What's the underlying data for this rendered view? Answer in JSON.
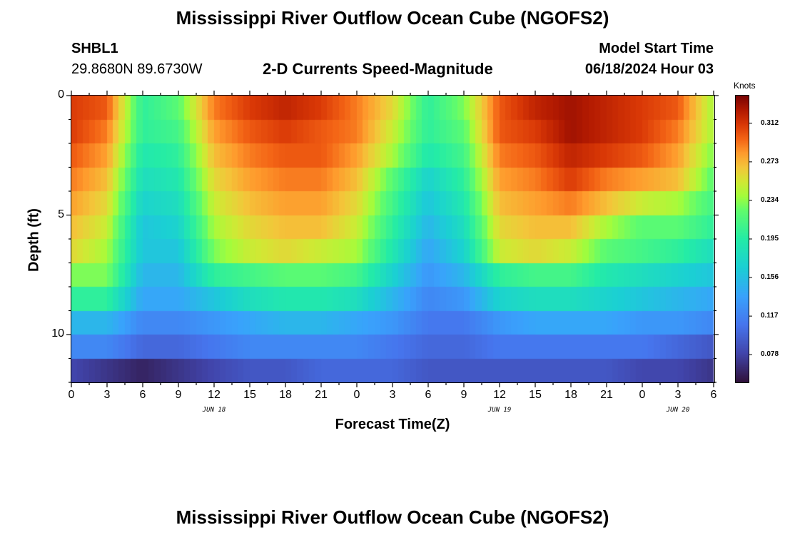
{
  "header": {
    "title": "Mississippi River Outflow Ocean Cube (NGOFS2)",
    "station": "SHBL1",
    "coords": "29.8680N  89.6730W",
    "subtitle": "2-D Currents Speed-Magnitude",
    "model_start_label": "Model Start Time",
    "model_start_value": "06/18/2024 Hour 03"
  },
  "footer": {
    "title": "Mississippi River Outflow Ocean Cube (NGOFS2)"
  },
  "chart_data": {
    "type": "heatmap",
    "xlabel": "Forecast Time(Z)",
    "ylabel": "Depth (ft)",
    "xlim": [
      0,
      54
    ],
    "ylim": [
      12,
      0
    ],
    "x_tick_labels": [
      "0",
      "3",
      "6",
      "9",
      "12",
      "15",
      "18",
      "21",
      "0",
      "3",
      "6",
      "9",
      "12",
      "15",
      "18",
      "21",
      "0",
      "3",
      "6"
    ],
    "y_tick_labels": [
      "0",
      "5",
      "10"
    ],
    "y_ticks": [
      0,
      5,
      10
    ],
    "day_labels": [
      {
        "text": "JUN 18",
        "hour": 12
      },
      {
        "text": "JUN 19",
        "hour": 36
      },
      {
        "text": "JUN 20",
        "hour": 51
      }
    ],
    "colorbar": {
      "unit": "Knots",
      "min": 0.05,
      "max": 0.34,
      "tick_labels": [
        "0.312",
        "0.273",
        "0.234",
        "0.195",
        "0.156",
        "0.117",
        "0.078"
      ]
    },
    "depths_ft": [
      0.5,
      1.5,
      2.5,
      3.5,
      4.5,
      5.5,
      6.5,
      7.5,
      8.5,
      9.5,
      10.5,
      11.5
    ],
    "hours": [
      0,
      3,
      6,
      9,
      12,
      15,
      18,
      21,
      24,
      27,
      30,
      33,
      36,
      39,
      42,
      45,
      48,
      51,
      54
    ],
    "speeds_knots": [
      [
        0.31,
        0.3,
        0.2,
        0.22,
        0.29,
        0.31,
        0.32,
        0.31,
        0.29,
        0.26,
        0.2,
        0.23,
        0.3,
        0.32,
        0.33,
        0.32,
        0.31,
        0.3,
        0.24
      ],
      [
        0.31,
        0.29,
        0.2,
        0.21,
        0.28,
        0.3,
        0.31,
        0.3,
        0.29,
        0.25,
        0.2,
        0.22,
        0.3,
        0.31,
        0.33,
        0.32,
        0.31,
        0.29,
        0.24
      ],
      [
        0.3,
        0.28,
        0.19,
        0.2,
        0.27,
        0.29,
        0.3,
        0.3,
        0.28,
        0.24,
        0.19,
        0.21,
        0.29,
        0.3,
        0.32,
        0.31,
        0.3,
        0.28,
        0.23
      ],
      [
        0.29,
        0.27,
        0.18,
        0.19,
        0.26,
        0.28,
        0.29,
        0.29,
        0.27,
        0.22,
        0.17,
        0.2,
        0.28,
        0.29,
        0.31,
        0.29,
        0.28,
        0.27,
        0.22
      ],
      [
        0.28,
        0.26,
        0.17,
        0.18,
        0.25,
        0.27,
        0.28,
        0.28,
        0.26,
        0.21,
        0.16,
        0.19,
        0.27,
        0.28,
        0.29,
        0.27,
        0.25,
        0.24,
        0.21
      ],
      [
        0.27,
        0.25,
        0.16,
        0.17,
        0.24,
        0.26,
        0.27,
        0.27,
        0.25,
        0.2,
        0.15,
        0.18,
        0.26,
        0.27,
        0.27,
        0.24,
        0.22,
        0.22,
        0.2
      ],
      [
        0.26,
        0.24,
        0.16,
        0.16,
        0.23,
        0.25,
        0.26,
        0.25,
        0.24,
        0.19,
        0.14,
        0.17,
        0.25,
        0.26,
        0.25,
        0.22,
        0.21,
        0.2,
        0.18
      ],
      [
        0.23,
        0.23,
        0.15,
        0.15,
        0.2,
        0.21,
        0.22,
        0.22,
        0.21,
        0.17,
        0.13,
        0.15,
        0.2,
        0.21,
        0.21,
        0.19,
        0.18,
        0.17,
        0.16
      ],
      [
        0.2,
        0.2,
        0.14,
        0.14,
        0.16,
        0.18,
        0.19,
        0.19,
        0.18,
        0.15,
        0.12,
        0.13,
        0.17,
        0.18,
        0.18,
        0.17,
        0.16,
        0.15,
        0.14
      ],
      [
        0.15,
        0.15,
        0.12,
        0.12,
        0.13,
        0.14,
        0.15,
        0.15,
        0.14,
        0.13,
        0.11,
        0.11,
        0.13,
        0.14,
        0.14,
        0.14,
        0.13,
        0.13,
        0.12
      ],
      [
        0.12,
        0.12,
        0.1,
        0.1,
        0.11,
        0.12,
        0.12,
        0.12,
        0.12,
        0.11,
        0.1,
        0.1,
        0.11,
        0.11,
        0.11,
        0.11,
        0.11,
        0.1,
        0.09
      ],
      [
        0.08,
        0.07,
        0.06,
        0.07,
        0.08,
        0.09,
        0.09,
        0.1,
        0.1,
        0.1,
        0.09,
        0.09,
        0.09,
        0.09,
        0.09,
        0.09,
        0.08,
        0.08,
        0.07
      ]
    ]
  }
}
